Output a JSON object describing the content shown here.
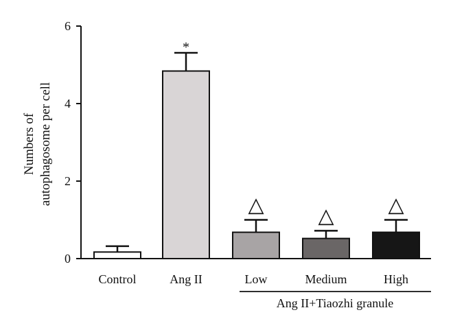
{
  "chart_data": {
    "type": "bar",
    "categories": [
      "Control",
      "Ang II",
      "Low",
      "Medium",
      "High"
    ],
    "values": [
      0.17,
      4.84,
      0.68,
      0.52,
      0.68
    ],
    "errors": [
      0.15,
      0.47,
      0.32,
      0.2,
      0.32
    ],
    "annotations": [
      "",
      "*",
      "△",
      "△",
      "△"
    ],
    "bar_colors": [
      "#ffffff",
      "#d9d5d6",
      "#a8a4a5",
      "#6a6666",
      "#161616"
    ],
    "ylabel_lines": [
      "Numbers of",
      "autophagosome per cell"
    ],
    "ylim": [
      0,
      6
    ],
    "yticks": [
      0,
      2,
      4,
      6
    ],
    "group_label": "Ang II+Tiaozhi granule",
    "grid": false,
    "legend": "none"
  }
}
